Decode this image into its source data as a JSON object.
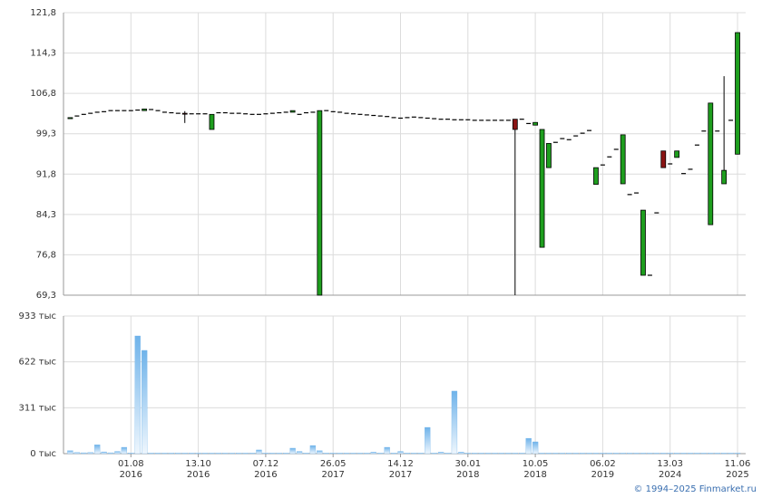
{
  "chart_data": [
    {
      "type": "candlestick",
      "open": [
        102.1,
        102.6,
        102.9,
        103.1,
        103.3,
        103.4,
        103.6,
        103.6,
        103.6,
        103.6,
        103.7,
        103.6,
        103.8,
        103.6,
        103.3,
        103.2,
        103.1,
        103.1,
        103.0,
        103.0,
        103.0,
        100.1,
        103.2,
        103.2,
        103.1,
        103.1,
        103.0,
        102.9,
        102.9,
        103.0,
        103.1,
        103.2,
        103.3,
        103.3,
        102.9,
        103.2,
        103.3,
        69.3,
        103.6,
        103.4,
        103.3,
        103.1,
        103.0,
        102.9,
        102.8,
        102.7,
        102.6,
        102.5,
        102.3,
        102.2,
        102.3,
        102.4,
        102.3,
        102.2,
        102.1,
        102.0,
        102.0,
        101.9,
        101.9,
        101.9,
        101.8,
        101.8,
        101.8,
        101.8,
        101.8,
        101.8,
        102.0,
        102.0,
        101.2,
        100.9,
        78.2,
        93.0,
        97.7,
        98.4,
        98.2,
        98.9,
        99.4,
        99.9,
        89.9,
        93.5,
        95.0,
        96.4,
        90.0,
        88.0,
        88.3,
        73.0,
        73.0,
        84.6,
        96.1,
        93.7,
        94.9,
        91.9,
        92.7,
        97.2,
        99.8,
        82.4,
        99.8,
        90.0,
        101.8,
        95.5
      ],
      "high": [
        102.3,
        102.6,
        102.9,
        103.1,
        103.3,
        103.4,
        103.6,
        103.6,
        103.6,
        103.6,
        103.7,
        103.9,
        103.8,
        103.6,
        103.3,
        103.2,
        103.1,
        103.5,
        103.0,
        103.0,
        103.0,
        102.9,
        103.2,
        103.2,
        103.1,
        103.1,
        103.0,
        102.9,
        102.9,
        103.0,
        103.1,
        103.2,
        103.3,
        103.6,
        102.9,
        103.2,
        103.3,
        103.6,
        103.6,
        103.4,
        103.3,
        103.1,
        103.0,
        102.9,
        102.8,
        102.7,
        102.6,
        102.5,
        102.3,
        102.2,
        102.3,
        102.4,
        102.3,
        102.2,
        102.1,
        102.0,
        102.0,
        101.9,
        101.9,
        101.9,
        101.8,
        101.8,
        101.8,
        101.8,
        101.8,
        101.8,
        102.0,
        102.0,
        101.2,
        101.4,
        100.1,
        97.5,
        97.7,
        98.4,
        98.2,
        98.9,
        99.4,
        99.9,
        93.0,
        93.5,
        95.0,
        96.4,
        99.1,
        88.0,
        88.3,
        85.1,
        73.0,
        84.6,
        96.1,
        93.7,
        96.1,
        91.9,
        92.7,
        97.2,
        99.8,
        105.0,
        99.8,
        110.0,
        101.8,
        118.1
      ],
      "low": [
        102.1,
        102.6,
        102.9,
        103.1,
        103.3,
        103.4,
        103.6,
        103.6,
        103.6,
        103.6,
        103.7,
        103.6,
        103.8,
        103.6,
        103.3,
        103.2,
        103.1,
        101.3,
        103.0,
        103.0,
        103.0,
        100.1,
        103.2,
        103.2,
        103.1,
        103.1,
        103.0,
        102.9,
        102.9,
        103.0,
        103.1,
        103.2,
        103.3,
        103.3,
        102.9,
        103.2,
        103.3,
        69.3,
        103.6,
        103.4,
        103.3,
        103.1,
        103.0,
        102.9,
        102.8,
        102.7,
        102.6,
        102.5,
        102.3,
        102.2,
        102.3,
        102.4,
        102.3,
        102.2,
        102.1,
        102.0,
        102.0,
        101.9,
        101.9,
        101.9,
        101.8,
        101.8,
        101.8,
        101.8,
        101.8,
        101.8,
        69.3,
        102.0,
        101.2,
        100.9,
        78.2,
        93.0,
        97.7,
        98.4,
        98.2,
        98.9,
        99.4,
        99.9,
        89.9,
        93.5,
        95.0,
        96.4,
        90.0,
        88.0,
        88.3,
        73.0,
        73.0,
        84.6,
        93.0,
        93.7,
        94.9,
        91.9,
        92.7,
        97.2,
        99.8,
        82.4,
        99.8,
        90.0,
        101.8,
        95.5
      ],
      "close": [
        102.3,
        102.6,
        102.9,
        103.1,
        103.3,
        103.4,
        103.6,
        103.6,
        103.6,
        103.6,
        103.7,
        103.9,
        103.8,
        103.6,
        103.3,
        103.2,
        103.1,
        103.0,
        103.0,
        103.0,
        103.0,
        102.9,
        103.2,
        103.2,
        103.1,
        103.1,
        103.0,
        102.9,
        102.9,
        103.0,
        103.1,
        103.2,
        103.3,
        103.6,
        102.9,
        103.2,
        103.3,
        103.6,
        103.6,
        103.4,
        103.3,
        103.1,
        103.0,
        102.9,
        102.8,
        102.7,
        102.6,
        102.5,
        102.3,
        102.2,
        102.3,
        102.4,
        102.3,
        102.2,
        102.1,
        102.0,
        102.0,
        101.9,
        101.9,
        101.9,
        101.8,
        101.8,
        101.8,
        101.8,
        101.8,
        101.8,
        100.1,
        102.0,
        101.2,
        101.4,
        100.1,
        97.5,
        97.7,
        98.4,
        98.2,
        98.9,
        99.4,
        99.9,
        93.0,
        93.5,
        95.0,
        96.4,
        99.1,
        88.0,
        88.3,
        85.1,
        73.0,
        84.6,
        93.0,
        93.7,
        96.1,
        91.9,
        92.7,
        97.2,
        99.8,
        105.0,
        99.8,
        92.5,
        101.8,
        118.1
      ],
      "up_color": "#1e9e1e",
      "down_color": "#8b1414",
      "ylim": [
        69.3,
        121.8
      ],
      "yticks": [
        {
          "value": 69.3,
          "label": "69,3"
        },
        {
          "value": 76.8,
          "label": "76,8"
        },
        {
          "value": 84.3,
          "label": "84,3"
        },
        {
          "value": 91.8,
          "label": "91,8"
        },
        {
          "value": 99.3,
          "label": "99,3"
        },
        {
          "value": 106.8,
          "label": "106,8"
        },
        {
          "value": 114.3,
          "label": "114,3"
        },
        {
          "value": 121.8,
          "label": "121,8"
        }
      ],
      "grid": true
    },
    {
      "type": "bar",
      "categories": [
        null,
        null,
        null,
        null,
        null,
        null,
        null,
        null,
        null,
        "01.08\n2016",
        null,
        null,
        null,
        null,
        null,
        null,
        null,
        null,
        null,
        "13.10\n2016",
        null,
        null,
        null,
        null,
        null,
        null,
        null,
        null,
        null,
        "07.12\n2016",
        null,
        null,
        null,
        null,
        null,
        null,
        null,
        null,
        null,
        "26.05\n2017",
        null,
        null,
        null,
        null,
        null,
        null,
        null,
        null,
        null,
        "14.12\n2017",
        null,
        null,
        null,
        null,
        null,
        null,
        null,
        null,
        null,
        "30.01\n2018",
        null,
        null,
        null,
        null,
        null,
        null,
        null,
        null,
        null,
        "10.05\n2018",
        null,
        null,
        null,
        null,
        null,
        null,
        null,
        null,
        null,
        "06.02\n2019",
        null,
        null,
        null,
        null,
        null,
        null,
        null,
        null,
        null,
        "13.03\n2024",
        null,
        null,
        null,
        null,
        null,
        null,
        null,
        null,
        null,
        "11.06\n2025"
      ],
      "values": [
        20,
        8,
        6,
        8,
        60,
        12,
        6,
        15,
        43,
        5,
        798,
        700,
        4,
        4,
        4,
        4,
        4,
        4,
        4,
        4,
        4,
        4,
        4,
        4,
        4,
        4,
        4,
        4,
        25,
        4,
        4,
        4,
        4,
        37,
        15,
        4,
        55,
        20,
        4,
        4,
        4,
        4,
        4,
        4,
        4,
        10,
        4,
        43,
        4,
        15,
        4,
        4,
        4,
        178,
        4,
        10,
        4,
        424,
        10,
        4,
        4,
        4,
        4,
        4,
        4,
        4,
        4,
        4,
        104,
        80,
        4,
        4,
        4,
        4,
        4,
        4,
        4,
        4,
        4,
        4,
        4,
        4,
        4,
        4,
        4,
        4,
        4,
        4,
        4,
        4,
        4,
        4,
        4,
        4,
        4,
        4,
        4,
        4,
        4,
        4
      ],
      "color": "#6fb3ea",
      "ylim": [
        0,
        933
      ],
      "yticks": [
        {
          "value": 0,
          "label": "0 тыс"
        },
        {
          "value": 311,
          "label": "311 тыс"
        },
        {
          "value": 622,
          "label": "622 тыс"
        },
        {
          "value": 933,
          "label": "933 тыс"
        }
      ],
      "grid": true
    }
  ],
  "footer": "© 1994–2025 Finmarket.ru"
}
